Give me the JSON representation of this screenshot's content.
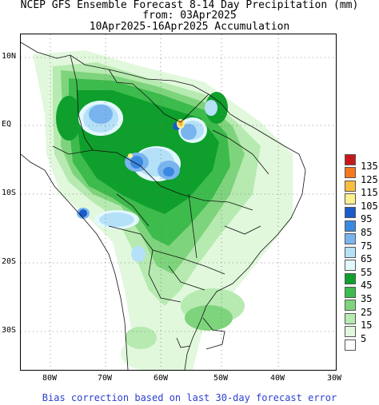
{
  "header": {
    "title": "NCEP GFS Ensemble Forecast 8-14 Day Precipitation (mm)",
    "from": "from: 03Apr2025",
    "period": "10Apr2025-16Apr2025 Accumulation"
  },
  "map": {
    "lat_ticks": [
      "10N",
      "EQ",
      "10S",
      "20S",
      "30S"
    ],
    "lon_ticks": [
      "80W",
      "70W",
      "60W",
      "50W",
      "40W",
      "30W"
    ]
  },
  "legend": {
    "items": [
      {
        "label": "135",
        "color": "#c8171a"
      },
      {
        "label": "125",
        "color": "#f6781c"
      },
      {
        "label": "115",
        "color": "#fbbe3e"
      },
      {
        "label": "105",
        "color": "#fdf08f"
      },
      {
        "label": "95",
        "color": "#1b5cc9"
      },
      {
        "label": "85",
        "color": "#3a88e1"
      },
      {
        "label": "75",
        "color": "#7ab4ef"
      },
      {
        "label": "65",
        "color": "#b5e1f8"
      },
      {
        "label": "55",
        "color": "#e3f8fd"
      },
      {
        "label": "45",
        "color": "#0f9f2c"
      },
      {
        "label": "35",
        "color": "#3dbb4c"
      },
      {
        "label": "25",
        "color": "#7ed47c"
      },
      {
        "label": "15",
        "color": "#b6eab0"
      },
      {
        "label": "5",
        "color": "#e1f8dc"
      },
      {
        "label": "",
        "color": "#ffffff"
      }
    ]
  },
  "footer": "Bias correction based on last 30-day forecast error"
}
